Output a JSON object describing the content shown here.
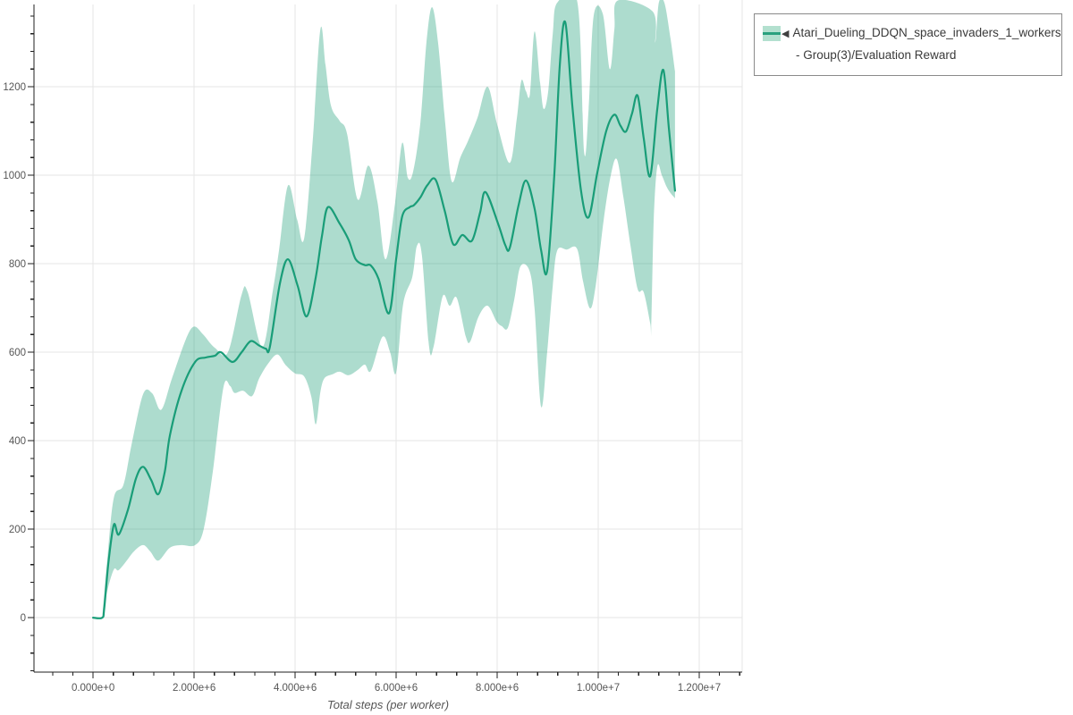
{
  "legend": {
    "marker": "◀",
    "label": "Atari_Dueling_DDQN_space_invaders_1_workers - Group(3)/Evaluation Reward",
    "swatch_fill": "#b3e0cf",
    "swatch_line": "#2aa17e",
    "border_color": "#8a8a8a"
  },
  "colors": {
    "grid": "#e5e5e5",
    "spine": "#1f1f1f",
    "tick_label": "#565656",
    "axis_label": "#565656",
    "background": "#ffffff"
  },
  "chart_data": {
    "type": "line",
    "title": "",
    "xlabel": "Total steps (per worker)",
    "ylabel": "",
    "x_unit": "millions of steps",
    "xlim": [
      -1.17,
      12.85
    ],
    "ylim": [
      -123,
      1386
    ],
    "grid": true,
    "legend_position": "top-right",
    "x_ticks": {
      "values": [
        0,
        2,
        4,
        6,
        8,
        10,
        12
      ],
      "labels": [
        "0.000e+0",
        "2.000e+6",
        "4.000e+6",
        "6.000e+6",
        "8.000e+6",
        "1.000e+7",
        "1.200e+7"
      ],
      "minor_step": 0.4
    },
    "y_ticks": {
      "values": [
        0,
        200,
        400,
        600,
        800,
        1000,
        1200
      ],
      "labels": [
        "0",
        "200",
        "400",
        "600",
        "800",
        "1000",
        "1200"
      ],
      "minor_step": 40
    },
    "series": [
      {
        "name": "Atari_Dueling_DDQN_space_invaders_1_workers - Group(3)/Evaluation Reward",
        "color": "#199d78",
        "band_color": "#1b9e77",
        "band_opacity": 0.36,
        "mean": [
          [
            0,
            0
          ],
          [
            0.18,
            0
          ],
          [
            0.22,
            20
          ],
          [
            0.3,
            120
          ],
          [
            0.41,
            210
          ],
          [
            0.51,
            188
          ],
          [
            0.69,
            244
          ],
          [
            0.85,
            315
          ],
          [
            0.99,
            341
          ],
          [
            1.15,
            311
          ],
          [
            1.29,
            279
          ],
          [
            1.42,
            330
          ],
          [
            1.52,
            412
          ],
          [
            1.75,
            513
          ],
          [
            2.02,
            578
          ],
          [
            2.23,
            588
          ],
          [
            2.41,
            592
          ],
          [
            2.53,
            600
          ],
          [
            2.76,
            578
          ],
          [
            2.94,
            600
          ],
          [
            3.12,
            625
          ],
          [
            3.29,
            615
          ],
          [
            3.42,
            608
          ],
          [
            3.5,
            612
          ],
          [
            3.7,
            756
          ],
          [
            3.86,
            810
          ],
          [
            4.05,
            750
          ],
          [
            4.23,
            681
          ],
          [
            4.41,
            770
          ],
          [
            4.53,
            862
          ],
          [
            4.65,
            928
          ],
          [
            4.88,
            891
          ],
          [
            5.06,
            854
          ],
          [
            5.2,
            810
          ],
          [
            5.38,
            797
          ],
          [
            5.5,
            796
          ],
          [
            5.65,
            766
          ],
          [
            5.86,
            688
          ],
          [
            6.0,
            810
          ],
          [
            6.12,
            907
          ],
          [
            6.27,
            928
          ],
          [
            6.35,
            932
          ],
          [
            6.48,
            950
          ],
          [
            6.62,
            978
          ],
          [
            6.78,
            990
          ],
          [
            6.96,
            920
          ],
          [
            7.13,
            844
          ],
          [
            7.31,
            865
          ],
          [
            7.5,
            852
          ],
          [
            7.66,
            915
          ],
          [
            7.77,
            962
          ],
          [
            8.02,
            890
          ],
          [
            8.16,
            842
          ],
          [
            8.25,
            836
          ],
          [
            8.42,
            930
          ],
          [
            8.57,
            988
          ],
          [
            8.74,
            925
          ],
          [
            8.87,
            830
          ],
          [
            8.99,
            784
          ],
          [
            9.13,
            1000
          ],
          [
            9.24,
            1250
          ],
          [
            9.35,
            1345
          ],
          [
            9.49,
            1154
          ],
          [
            9.66,
            965
          ],
          [
            9.81,
            905
          ],
          [
            9.98,
            1005
          ],
          [
            10.16,
            1100
          ],
          [
            10.32,
            1137
          ],
          [
            10.44,
            1112
          ],
          [
            10.55,
            1099
          ],
          [
            10.67,
            1140
          ],
          [
            10.78,
            1180
          ],
          [
            10.9,
            1085
          ],
          [
            11.03,
            998
          ],
          [
            11.17,
            1150
          ],
          [
            11.29,
            1238
          ],
          [
            11.4,
            1105
          ],
          [
            11.52,
            965
          ]
        ],
        "band_upper": [
          [
            0.18,
            0
          ],
          [
            0.28,
            130
          ],
          [
            0.41,
            271
          ],
          [
            0.6,
            300
          ],
          [
            0.76,
            390
          ],
          [
            0.99,
            505
          ],
          [
            1.17,
            507
          ],
          [
            1.35,
            470
          ],
          [
            1.56,
            540
          ],
          [
            1.84,
            630
          ],
          [
            2.0,
            658
          ],
          [
            2.18,
            640
          ],
          [
            2.41,
            610
          ],
          [
            2.67,
            600
          ],
          [
            2.94,
            730
          ],
          [
            3.06,
            736
          ],
          [
            3.35,
            612
          ],
          [
            3.56,
            740
          ],
          [
            3.68,
            830
          ],
          [
            3.86,
            977
          ],
          [
            4.04,
            900
          ],
          [
            4.18,
            858
          ],
          [
            4.35,
            1080
          ],
          [
            4.5,
            1330
          ],
          [
            4.6,
            1250
          ],
          [
            4.71,
            1157
          ],
          [
            4.88,
            1123
          ],
          [
            5.03,
            1093
          ],
          [
            5.24,
            945
          ],
          [
            5.45,
            1022
          ],
          [
            5.63,
            940
          ],
          [
            5.79,
            810
          ],
          [
            5.98,
            938
          ],
          [
            6.12,
            1073
          ],
          [
            6.23,
            995
          ],
          [
            6.34,
            1010
          ],
          [
            6.48,
            1120
          ],
          [
            6.6,
            1300
          ],
          [
            6.71,
            1380
          ],
          [
            6.83,
            1300
          ],
          [
            6.97,
            1120
          ],
          [
            7.1,
            986
          ],
          [
            7.27,
            1040
          ],
          [
            7.42,
            1077
          ],
          [
            7.61,
            1130
          ],
          [
            7.81,
            1200
          ],
          [
            8.0,
            1115
          ],
          [
            8.25,
            1028
          ],
          [
            8.39,
            1130
          ],
          [
            8.48,
            1214
          ],
          [
            8.57,
            1190
          ],
          [
            8.65,
            1184
          ],
          [
            8.74,
            1325
          ],
          [
            8.85,
            1210
          ],
          [
            8.92,
            1150
          ],
          [
            9.01,
            1190
          ],
          [
            9.1,
            1320
          ],
          [
            9.19,
            1390
          ],
          [
            9.59,
            1390
          ],
          [
            9.72,
            1053
          ],
          [
            9.81,
            1150
          ],
          [
            9.91,
            1360
          ],
          [
            10.09,
            1365
          ],
          [
            10.23,
            1240
          ],
          [
            10.32,
            1330
          ],
          [
            10.39,
            1395
          ],
          [
            11.08,
            1370
          ],
          [
            11.13,
            1300
          ],
          [
            11.2,
            1390
          ],
          [
            11.31,
            1390
          ],
          [
            11.43,
            1310
          ],
          [
            11.52,
            1235
          ]
        ],
        "band_lower": [
          [
            0.18,
            0
          ],
          [
            0.28,
            60
          ],
          [
            0.41,
            109
          ],
          [
            0.5,
            107
          ],
          [
            0.64,
            125
          ],
          [
            0.81,
            150
          ],
          [
            0.99,
            164
          ],
          [
            1.13,
            150
          ],
          [
            1.29,
            129
          ],
          [
            1.52,
            158
          ],
          [
            1.75,
            164
          ],
          [
            2.02,
            164
          ],
          [
            2.19,
            200
          ],
          [
            2.37,
            330
          ],
          [
            2.58,
            520
          ],
          [
            2.71,
            524
          ],
          [
            2.8,
            508
          ],
          [
            2.97,
            513
          ],
          [
            3.15,
            501
          ],
          [
            3.29,
            541
          ],
          [
            3.47,
            575
          ],
          [
            3.65,
            595
          ],
          [
            3.82,
            570
          ],
          [
            4.0,
            552
          ],
          [
            4.18,
            545
          ],
          [
            4.32,
            500
          ],
          [
            4.41,
            437
          ],
          [
            4.5,
            510
          ],
          [
            4.58,
            541
          ],
          [
            4.74,
            550
          ],
          [
            4.88,
            556
          ],
          [
            5.06,
            548
          ],
          [
            5.24,
            560
          ],
          [
            5.38,
            572
          ],
          [
            5.5,
            558
          ],
          [
            5.73,
            635
          ],
          [
            5.88,
            600
          ],
          [
            6.0,
            554
          ],
          [
            6.14,
            709
          ],
          [
            6.32,
            770
          ],
          [
            6.41,
            840
          ],
          [
            6.51,
            820
          ],
          [
            6.65,
            614
          ],
          [
            6.74,
            612
          ],
          [
            6.92,
            726
          ],
          [
            7.06,
            705
          ],
          [
            7.2,
            723
          ],
          [
            7.38,
            635
          ],
          [
            7.47,
            625
          ],
          [
            7.63,
            680
          ],
          [
            7.81,
            705
          ],
          [
            7.99,
            669
          ],
          [
            8.09,
            659
          ],
          [
            8.21,
            655
          ],
          [
            8.34,
            720
          ],
          [
            8.46,
            794
          ],
          [
            8.64,
            784
          ],
          [
            8.74,
            700
          ],
          [
            8.87,
            477
          ],
          [
            8.99,
            600
          ],
          [
            9.1,
            750
          ],
          [
            9.19,
            830
          ],
          [
            9.38,
            832
          ],
          [
            9.58,
            834
          ],
          [
            9.7,
            760
          ],
          [
            9.84,
            699
          ],
          [
            9.95,
            750
          ],
          [
            10.11,
            900
          ],
          [
            10.25,
            1000
          ],
          [
            10.37,
            1036
          ],
          [
            10.5,
            950
          ],
          [
            10.64,
            840
          ],
          [
            10.78,
            743
          ],
          [
            10.9,
            736
          ],
          [
            11.03,
            665
          ],
          [
            11.05,
            655
          ],
          [
            11.1,
            900
          ],
          [
            11.17,
            1020
          ],
          [
            11.26,
            1000
          ],
          [
            11.35,
            975
          ],
          [
            11.43,
            960
          ],
          [
            11.52,
            948
          ]
        ]
      }
    ]
  }
}
